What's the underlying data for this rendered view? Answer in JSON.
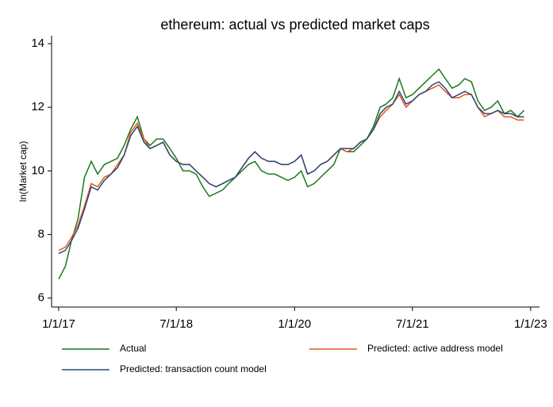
{
  "chart_data": {
    "type": "line",
    "title": "ethereum: actual vs predicted market caps",
    "y_label": "ln(Market cap)",
    "x": [
      "1/1/17",
      "2/1/17",
      "3/1/17",
      "4/1/17",
      "5/1/17",
      "6/1/17",
      "7/1/17",
      "8/1/17",
      "9/1/17",
      "10/1/17",
      "11/1/17",
      "12/1/17",
      "1/1/18",
      "2/1/18",
      "3/1/18",
      "4/1/18",
      "5/1/18",
      "6/1/18",
      "7/1/18",
      "8/1/18",
      "9/1/18",
      "10/1/18",
      "11/1/18",
      "12/1/18",
      "1/1/19",
      "2/1/19",
      "3/1/19",
      "4/1/19",
      "5/1/19",
      "6/1/19",
      "7/1/19",
      "8/1/19",
      "9/1/19",
      "10/1/19",
      "11/1/19",
      "12/1/19",
      "1/1/20",
      "2/1/20",
      "3/1/20",
      "4/1/20",
      "5/1/20",
      "6/1/20",
      "7/1/20",
      "8/1/20",
      "9/1/20",
      "10/1/20",
      "11/1/20",
      "12/1/20",
      "1/1/21",
      "2/1/21",
      "3/1/21",
      "4/1/21",
      "5/1/21",
      "6/1/21",
      "7/1/21",
      "8/1/21",
      "9/1/21",
      "10/1/21",
      "11/1/21",
      "12/1/21",
      "1/1/22",
      "2/1/22",
      "3/1/22",
      "4/1/22",
      "5/1/22",
      "6/1/22",
      "7/1/22",
      "8/1/22",
      "9/1/22",
      "10/1/22",
      "11/1/22",
      "12/1/22"
    ],
    "series": [
      {
        "name": "Actual",
        "color": "#1a7a1a",
        "values": [
          6.6,
          7.0,
          7.8,
          8.5,
          9.8,
          10.3,
          9.9,
          10.2,
          10.3,
          10.4,
          10.8,
          11.3,
          11.7,
          11.0,
          10.8,
          11.0,
          11.0,
          10.7,
          10.4,
          10.0,
          10.0,
          9.9,
          9.5,
          9.2,
          9.3,
          9.4,
          9.6,
          9.8,
          10.0,
          10.2,
          10.3,
          10.0,
          9.9,
          9.9,
          9.8,
          9.7,
          9.8,
          10.0,
          9.5,
          9.6,
          9.8,
          10.0,
          10.2,
          10.7,
          10.6,
          10.6,
          10.8,
          11.0,
          11.4,
          12.0,
          12.1,
          12.3,
          12.9,
          12.3,
          12.4,
          12.6,
          12.8,
          13.0,
          13.2,
          12.9,
          12.6,
          12.7,
          12.9,
          12.8,
          12.2,
          11.9,
          12.0,
          12.2,
          11.8,
          11.9,
          11.7,
          11.9
        ]
      },
      {
        "name": "Predicted: active address model",
        "color": "#e8561f",
        "values": [
          7.5,
          7.6,
          7.9,
          8.3,
          8.9,
          9.6,
          9.5,
          9.8,
          9.9,
          10.2,
          10.5,
          11.2,
          11.5,
          11.0,
          10.7,
          10.8,
          10.9,
          10.5,
          10.3,
          10.2,
          10.2,
          10.0,
          9.8,
          9.6,
          9.5,
          9.6,
          9.7,
          9.8,
          10.1,
          10.4,
          10.6,
          10.4,
          10.3,
          10.3,
          10.2,
          10.2,
          10.3,
          10.5,
          9.9,
          10.0,
          10.2,
          10.3,
          10.5,
          10.7,
          10.6,
          10.7,
          10.9,
          11.0,
          11.3,
          11.7,
          11.9,
          12.1,
          12.4,
          12.0,
          12.2,
          12.4,
          12.5,
          12.6,
          12.7,
          12.5,
          12.3,
          12.3,
          12.4,
          12.4,
          12.0,
          11.7,
          11.8,
          11.9,
          11.7,
          11.7,
          11.6,
          11.6
        ]
      },
      {
        "name": "Predicted: transaction count model",
        "color": "#2a4a7a",
        "values": [
          7.4,
          7.5,
          7.8,
          8.2,
          8.8,
          9.5,
          9.4,
          9.7,
          9.9,
          10.1,
          10.5,
          11.1,
          11.4,
          10.9,
          10.7,
          10.8,
          10.9,
          10.5,
          10.3,
          10.2,
          10.2,
          10.0,
          9.8,
          9.6,
          9.5,
          9.6,
          9.7,
          9.8,
          10.1,
          10.4,
          10.6,
          10.4,
          10.3,
          10.3,
          10.2,
          10.2,
          10.3,
          10.5,
          9.9,
          10.0,
          10.2,
          10.3,
          10.5,
          10.7,
          10.7,
          10.7,
          10.9,
          11.0,
          11.3,
          11.8,
          12.0,
          12.1,
          12.5,
          12.1,
          12.2,
          12.4,
          12.5,
          12.7,
          12.8,
          12.6,
          12.3,
          12.4,
          12.5,
          12.4,
          12.0,
          11.8,
          11.8,
          11.9,
          11.8,
          11.8,
          11.7,
          11.7
        ]
      }
    ],
    "xlim": [
      "11/29/16",
      "2/11/23"
    ],
    "xticks": [
      "1/1/17",
      "7/1/18",
      "1/1/20",
      "7/1/21",
      "1/1/23"
    ],
    "ylim": [
      5.72,
      14.25
    ],
    "yticks": [
      6,
      8,
      10,
      12,
      14
    ]
  }
}
